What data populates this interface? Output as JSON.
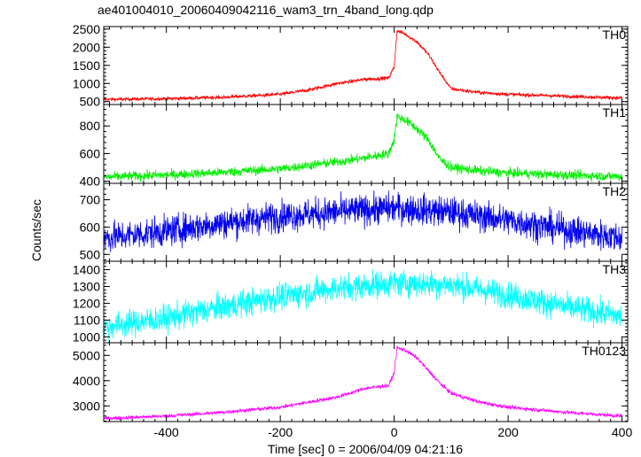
{
  "title": "ae401004010_20060409042116_wam3_trn_4band_long.qdp",
  "ylabel": "Counts/sec",
  "xlabel": "Time [sec] 0 = 2006/04/09 04:21:16",
  "x_ticks": [
    "-400",
    "-200",
    "0",
    "200",
    "400"
  ],
  "chart_data": [
    {
      "type": "line",
      "series_name": "TH0",
      "color": "#ff0000",
      "xlim": [
        -510,
        410
      ],
      "ylim": [
        420,
        2570
      ],
      "yticks": [
        500,
        1000,
        1500,
        2000,
        2500
      ],
      "noise": 25,
      "x": [
        -510,
        -400,
        -300,
        -200,
        -150,
        -100,
        -50,
        -10,
        0,
        5,
        15,
        25,
        40,
        60,
        80,
        100,
        150,
        200,
        300,
        400
      ],
      "y": [
        560,
        580,
        620,
        700,
        820,
        1000,
        1120,
        1150,
        1450,
        2450,
        2400,
        2300,
        2150,
        1800,
        1300,
        850,
        750,
        700,
        650,
        600
      ]
    },
    {
      "type": "line",
      "series_name": "TH1",
      "color": "#00ee00",
      "xlim": [
        -510,
        410
      ],
      "ylim": [
        385,
        955
      ],
      "yticks": [
        400,
        600,
        800
      ],
      "noise": 17,
      "x": [
        -510,
        -400,
        -300,
        -200,
        -100,
        -50,
        -10,
        0,
        5,
        20,
        40,
        60,
        80,
        100,
        150,
        200,
        300,
        400
      ],
      "y": [
        430,
        445,
        465,
        490,
        540,
        570,
        600,
        700,
        870,
        840,
        780,
        700,
        560,
        500,
        475,
        460,
        445,
        435
      ]
    },
    {
      "type": "line",
      "series_name": "TH2",
      "color": "#0000ee",
      "xlim": [
        -510,
        410
      ],
      "ylim": [
        475,
        760
      ],
      "yticks": [
        500,
        600,
        700
      ],
      "noise": 28,
      "x": [
        -510,
        -400,
        -300,
        -200,
        -100,
        0,
        100,
        200,
        300,
        400
      ],
      "y": [
        560,
        585,
        615,
        640,
        655,
        670,
        655,
        625,
        590,
        560
      ]
    },
    {
      "type": "line",
      "series_name": "TH3",
      "color": "#00ffff",
      "xlim": [
        -510,
        410
      ],
      "ylim": [
        965,
        1450
      ],
      "yticks": [
        1000,
        1100,
        1200,
        1300,
        1400
      ],
      "noise": 40,
      "x": [
        -510,
        -400,
        -300,
        -200,
        -100,
        0,
        100,
        200,
        300,
        400
      ],
      "y": [
        1060,
        1110,
        1180,
        1240,
        1290,
        1320,
        1310,
        1250,
        1180,
        1120
      ]
    },
    {
      "type": "line",
      "series_name": "TH0123",
      "color": "#ff00ff",
      "xlim": [
        -510,
        410
      ],
      "ylim": [
        2380,
        5500
      ],
      "yticks": [
        3000,
        4000,
        5000
      ],
      "noise": 38,
      "x": [
        -510,
        -400,
        -300,
        -200,
        -100,
        -50,
        -10,
        0,
        5,
        20,
        40,
        60,
        80,
        100,
        150,
        200,
        300,
        400
      ],
      "y": [
        2500,
        2600,
        2750,
        2950,
        3350,
        3700,
        3800,
        4300,
        5300,
        5200,
        4900,
        4400,
        3900,
        3500,
        3150,
        2950,
        2750,
        2600
      ]
    }
  ]
}
